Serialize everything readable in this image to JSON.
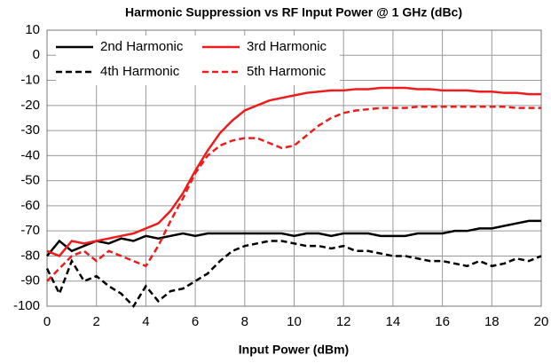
{
  "chart_data": {
    "type": "line",
    "title": "Harmonic Suppression vs RF Input Power @ 1 GHz (dBc)",
    "x_label": "Input Power (dBm)",
    "x": [
      0,
      0.5,
      1,
      1.5,
      2,
      2.5,
      3,
      3.5,
      4,
      4.5,
      5,
      5.5,
      6,
      6.5,
      7,
      7.5,
      8,
      8.5,
      9,
      9.5,
      10,
      10.5,
      11,
      11.5,
      12,
      12.5,
      13,
      13.5,
      14,
      14.5,
      15,
      15.5,
      16,
      16.5,
      17,
      17.5,
      18,
      18.5,
      19,
      19.5,
      20
    ],
    "series": [
      {
        "name": "2nd Harmonic",
        "color": "#000000",
        "dash": false,
        "values": [
          -80,
          -74,
          -78,
          -76,
          -74,
          -75,
          -73,
          -74,
          -72,
          -73,
          -72,
          -71,
          -72,
          -71,
          -71,
          -71,
          -71,
          -71,
          -71,
          -71,
          -72,
          -71,
          -71,
          -72,
          -71,
          -71,
          -71,
          -72,
          -72,
          -72,
          -71,
          -71,
          -71,
          -70,
          -70,
          -69,
          -69,
          -68,
          -67,
          -66,
          -66
        ]
      },
      {
        "name": "3rd Harmonic",
        "color": "#ee1c1c",
        "dash": false,
        "values": [
          -78,
          -80,
          -74,
          -75,
          -74,
          -73,
          -72,
          -71,
          -69,
          -67,
          -62,
          -55,
          -46,
          -38,
          -31,
          -26,
          -22,
          -20,
          -18,
          -17,
          -16,
          -15,
          -14.5,
          -14,
          -14,
          -13.5,
          -13.5,
          -13,
          -13,
          -13,
          -13.5,
          -13.5,
          -14,
          -14,
          -14,
          -14.5,
          -14.5,
          -15,
          -15,
          -15.5,
          -15.5
        ]
      },
      {
        "name": "4th Harmonic",
        "color": "#000000",
        "dash": true,
        "values": [
          -85,
          -95,
          -82,
          -90,
          -88,
          -92,
          -95,
          -100,
          -92,
          -98,
          -94,
          -93,
          -90,
          -87,
          -82,
          -78,
          -76,
          -75,
          -74,
          -74,
          -75,
          -76,
          -76,
          -77,
          -76,
          -78,
          -78,
          -79,
          -80,
          -80,
          -81,
          -82,
          -82,
          -83,
          -84,
          -82,
          -84,
          -83,
          -81,
          -82,
          -80
        ]
      },
      {
        "name": "5th Harmonic",
        "color": "#ee1c1c",
        "dash": true,
        "values": [
          -90,
          -85,
          -80,
          -78,
          -82,
          -78,
          -80,
          -82,
          -84,
          -76,
          -66,
          -57,
          -47,
          -40,
          -36,
          -34,
          -33,
          -33,
          -35,
          -37,
          -36,
          -32,
          -28,
          -25,
          -23,
          -22,
          -21.5,
          -21,
          -21,
          -21,
          -20.5,
          -20.5,
          -20.5,
          -20.5,
          -20.5,
          -20.5,
          -20.5,
          -20.5,
          -21,
          -21,
          -21
        ]
      }
    ],
    "xlim": [
      0,
      20
    ],
    "xticks": [
      0,
      2,
      4,
      6,
      8,
      10,
      12,
      14,
      16,
      18,
      20
    ],
    "ylim": [
      -100,
      10
    ],
    "yticks": [
      -100,
      -90,
      -80,
      -70,
      -60,
      -50,
      -40,
      -30,
      -20,
      -10,
      0,
      10
    ],
    "grid": true,
    "legend": "upper-left"
  }
}
